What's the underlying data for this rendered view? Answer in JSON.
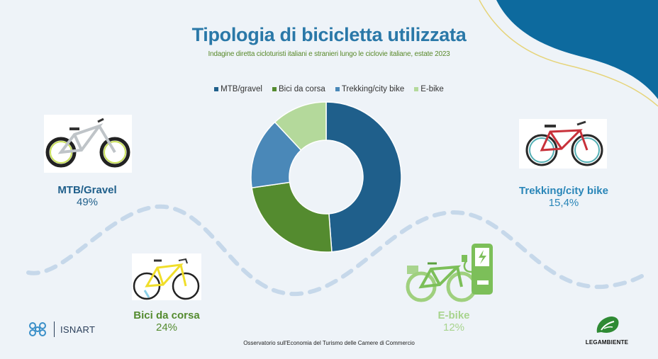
{
  "title": "Tipologia di bicicletta utilizzata",
  "subtitle": "Indagine diretta cicloturisti italiani e stranieri lungo le ciclovie italiane, estate 2023",
  "colors": {
    "mtb": "#1f5f8b",
    "corsa": "#548b2f",
    "trekking": "#4a88b8",
    "ebike": "#b4d99b",
    "title": "#2a78a8",
    "accent_dark": "#0d6a9e"
  },
  "chart_data": {
    "type": "pie",
    "categories": [
      "MTB/gravel",
      "Bici da corsa",
      "Trekking/city bike",
      "E-bike"
    ],
    "values": [
      49,
      24,
      15.4,
      12
    ],
    "legend": [
      "MTB/gravel",
      "Bici da corsa",
      "Trekking/city bike",
      "E-bike"
    ],
    "legend_placement": "top",
    "donut": true
  },
  "labels": [
    {
      "name": "MTB/Gravel",
      "value": "49%",
      "color": "#1f5f8b"
    },
    {
      "name": "Bici da corsa",
      "value": "24%",
      "color": "#548b2f"
    },
    {
      "name": "Trekking/city bike",
      "value": "15,4%",
      "color": "#2a86b8"
    },
    {
      "name": "E-bike",
      "value": "12%",
      "color": "#a8d48e"
    }
  ],
  "footer": "Osservatorio sull'Economia del Turismo delle Camere di Commercio",
  "logos": {
    "isnart": "ISNART",
    "legambiente": "LEGAMBIENTE"
  },
  "icons": [
    "mtb-bike-icon",
    "road-bike-icon",
    "city-bike-icon",
    "ebike-charger-icon",
    "isnart-logo-icon",
    "legambiente-logo-icon"
  ]
}
